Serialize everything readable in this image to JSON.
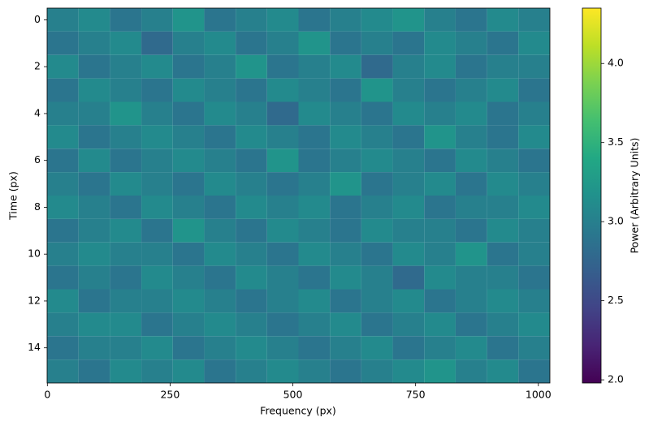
{
  "chart_data": {
    "type": "heatmap",
    "xlabel": "Frequency (px)",
    "ylabel": "Time (px)",
    "colorbar_label": "Power (Arbitrary Units)",
    "colormap": "viridis",
    "xbins": [
      0,
      64,
      128,
      192,
      256,
      320,
      384,
      448,
      512,
      576,
      640,
      704,
      768,
      832,
      896,
      960,
      1024
    ],
    "y": [
      0,
      1,
      2,
      3,
      4,
      5,
      6,
      7,
      8,
      9,
      10,
      11,
      12,
      13,
      14,
      15
    ],
    "values": [
      [
        3.0,
        3.1,
        2.9,
        3.0,
        3.2,
        2.9,
        3.0,
        3.1,
        2.9,
        3.0,
        3.1,
        3.2,
        3.0,
        2.9,
        3.1,
        3.0
      ],
      [
        2.9,
        3.0,
        3.1,
        2.8,
        3.0,
        3.1,
        2.9,
        3.0,
        3.2,
        2.9,
        3.0,
        2.9,
        3.1,
        3.0,
        2.9,
        3.1
      ],
      [
        3.1,
        2.9,
        3.0,
        3.1,
        2.9,
        3.0,
        3.2,
        2.9,
        3.0,
        3.1,
        2.8,
        3.0,
        3.1,
        2.9,
        3.0,
        3.0
      ],
      [
        2.9,
        3.1,
        3.0,
        2.9,
        3.1,
        3.0,
        2.9,
        3.1,
        3.0,
        2.9,
        3.2,
        3.0,
        2.9,
        3.0,
        3.1,
        2.9
      ],
      [
        3.0,
        3.0,
        3.2,
        3.0,
        2.9,
        3.1,
        3.0,
        2.8,
        3.1,
        3.0,
        2.9,
        3.1,
        3.0,
        3.1,
        2.9,
        3.0
      ],
      [
        3.1,
        2.9,
        3.0,
        3.1,
        3.0,
        2.9,
        3.1,
        3.0,
        2.9,
        3.1,
        3.0,
        2.9,
        3.2,
        3.0,
        2.9,
        3.1
      ],
      [
        2.9,
        3.1,
        2.9,
        3.0,
        3.1,
        3.0,
        2.9,
        3.2,
        2.9,
        3.0,
        3.1,
        3.0,
        2.9,
        3.1,
        3.0,
        2.9
      ],
      [
        3.0,
        2.9,
        3.1,
        3.0,
        2.9,
        3.1,
        3.0,
        2.9,
        3.0,
        3.2,
        2.9,
        3.0,
        3.1,
        2.9,
        3.1,
        3.0
      ],
      [
        3.1,
        3.0,
        2.9,
        3.1,
        3.0,
        2.9,
        3.1,
        3.0,
        3.1,
        2.9,
        3.0,
        3.1,
        2.9,
        3.0,
        3.0,
        3.1
      ],
      [
        2.9,
        3.0,
        3.1,
        2.9,
        3.2,
        3.0,
        2.9,
        3.1,
        3.0,
        2.9,
        3.1,
        3.0,
        3.0,
        2.9,
        3.1,
        3.0
      ],
      [
        3.0,
        3.1,
        3.0,
        3.0,
        2.9,
        3.1,
        3.0,
        2.9,
        3.1,
        3.0,
        2.9,
        3.1,
        3.0,
        3.2,
        2.9,
        3.0
      ],
      [
        2.9,
        3.0,
        2.9,
        3.1,
        3.0,
        2.9,
        3.1,
        3.0,
        2.9,
        3.1,
        3.0,
        2.8,
        3.1,
        3.0,
        3.0,
        2.9
      ],
      [
        3.1,
        2.9,
        3.0,
        3.0,
        3.1,
        3.0,
        2.9,
        3.0,
        3.1,
        2.9,
        3.0,
        3.1,
        2.9,
        3.0,
        3.1,
        3.0
      ],
      [
        3.0,
        3.1,
        3.1,
        2.9,
        3.0,
        3.1,
        3.0,
        2.9,
        3.0,
        3.1,
        2.9,
        3.0,
        3.1,
        2.9,
        3.0,
        3.1
      ],
      [
        2.9,
        3.0,
        3.0,
        3.1,
        2.9,
        3.0,
        3.1,
        3.0,
        2.9,
        3.0,
        3.1,
        2.9,
        3.0,
        3.1,
        2.9,
        3.0
      ],
      [
        3.0,
        2.9,
        3.1,
        3.0,
        3.1,
        2.9,
        3.0,
        3.1,
        3.0,
        2.9,
        3.0,
        3.1,
        3.2,
        3.0,
        3.1,
        2.9
      ]
    ],
    "xlim": [
      -0.5,
      1023.5
    ],
    "ylim": [
      15.5,
      -0.5
    ],
    "xticks": [
      0,
      250,
      500,
      750,
      1000
    ],
    "yticks": [
      0,
      2,
      4,
      6,
      8,
      10,
      12,
      14
    ],
    "clim": [
      1.98,
      4.35
    ],
    "cticks": [
      {
        "value": 2,
        "label": "2.0"
      },
      {
        "value": 2.5,
        "label": "2.5"
      },
      {
        "value": 3,
        "label": "3.0"
      },
      {
        "value": 3.5,
        "label": "3.5"
      },
      {
        "value": 4,
        "label": "4.0"
      }
    ]
  }
}
